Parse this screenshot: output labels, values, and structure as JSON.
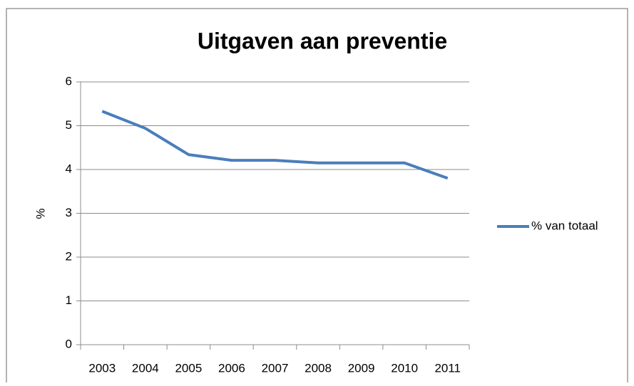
{
  "chart_data": {
    "type": "line",
    "title": "Uitgaven aan preventie",
    "y_label": "%",
    "categories": [
      "2003",
      "2004",
      "2005",
      "2006",
      "2007",
      "2008",
      "2009",
      "2010",
      "2011"
    ],
    "series": [
      {
        "name": "% van totaal",
        "color": "#4a7ebb",
        "values": [
          5.33,
          4.94,
          4.34,
          4.21,
          4.21,
          4.15,
          4.15,
          4.15,
          3.8
        ]
      }
    ],
    "ylim": [
      0,
      6
    ],
    "yticks": [
      0,
      1,
      2,
      3,
      4,
      5,
      6
    ],
    "grid": true,
    "legend": "right"
  }
}
